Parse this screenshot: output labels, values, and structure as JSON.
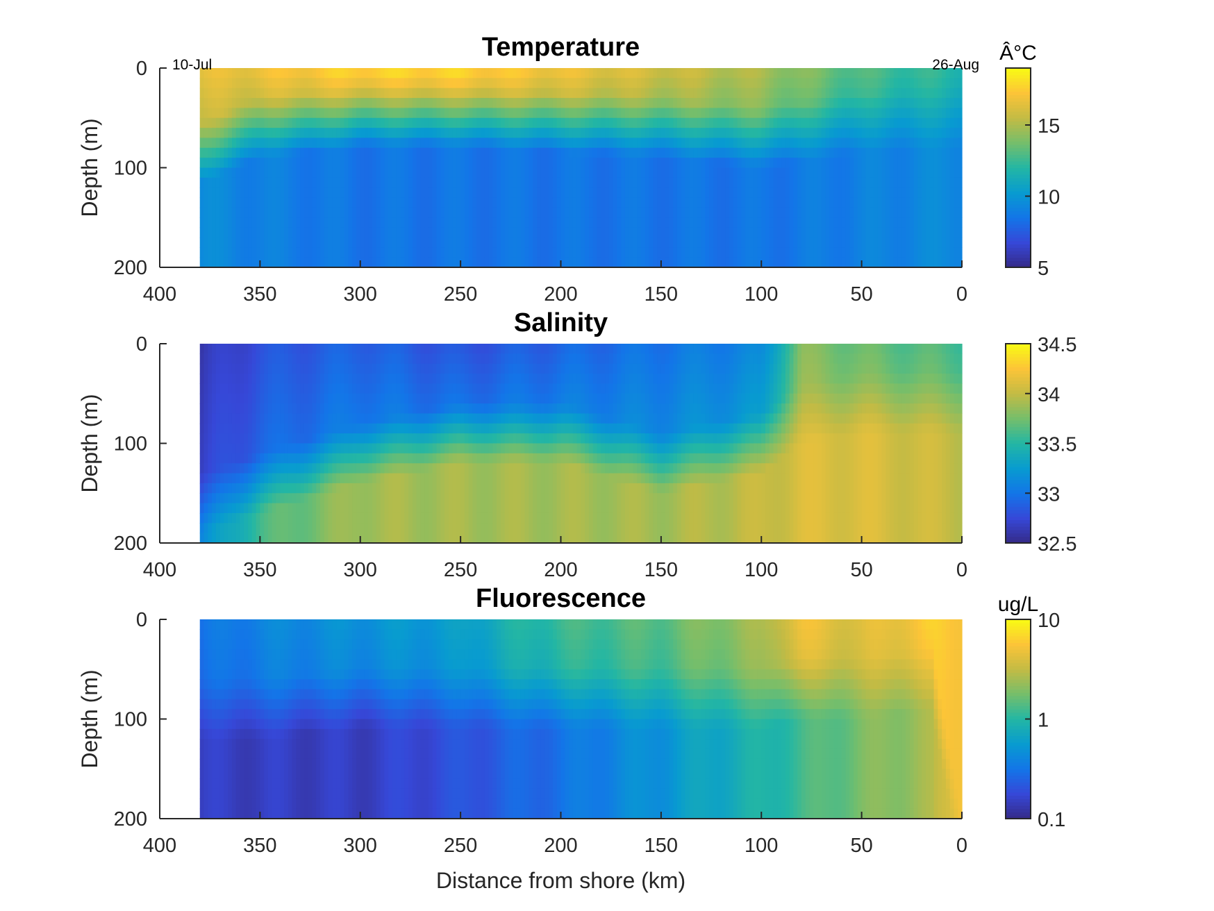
{
  "chart_data": [
    {
      "type": "heatmap",
      "title": "Temperature",
      "xlabel": "",
      "ylabel": "Depth (m)",
      "xlim": [
        400,
        0
      ],
      "ylim": [
        200,
        0
      ],
      "x_ticks": [
        "400",
        "350",
        "300",
        "250",
        "200",
        "150",
        "100",
        "50",
        "0"
      ],
      "y_ticks": [
        "0",
        "100",
        "200"
      ],
      "data_x_range": [
        380,
        0
      ],
      "colorbar": {
        "label": "Â°C",
        "range": [
          5,
          19
        ],
        "scale": "linear",
        "ticks": [
          "5",
          "10",
          "15"
        ],
        "tick_values": [
          5,
          10,
          15
        ]
      },
      "annotations": [
        "10-Jul",
        "26-Aug"
      ],
      "profile": {
        "x": [
          380,
          350,
          300,
          250,
          200,
          150,
          100,
          50,
          0
        ],
        "mixed_layer_depth_m": [
          55,
          30,
          20,
          20,
          25,
          30,
          40,
          25,
          20
        ],
        "surface_value": [
          16.5,
          17,
          18,
          18,
          17,
          16,
          15,
          13,
          12
        ],
        "deep_value": [
          9.5,
          9,
          8.5,
          8.5,
          8.5,
          8.5,
          8.5,
          9,
          9.5
        ]
      }
    },
    {
      "type": "heatmap",
      "title": "Salinity",
      "xlabel": "",
      "ylabel": "Depth (m)",
      "xlim": [
        400,
        0
      ],
      "ylim": [
        200,
        0
      ],
      "x_ticks": [
        "400",
        "350",
        "300",
        "250",
        "200",
        "150",
        "100",
        "50",
        "0"
      ],
      "y_ticks": [
        "0",
        "100",
        "200"
      ],
      "data_x_range": [
        380,
        0
      ],
      "colorbar": {
        "label": "",
        "range": [
          32.5,
          34.5
        ],
        "scale": "linear",
        "ticks": [
          "32.5",
          "33",
          "33.5",
          "34",
          "34.5"
        ],
        "tick_values": [
          32.5,
          33,
          33.5,
          34,
          34.5
        ]
      },
      "profile": {
        "x": [
          380,
          350,
          300,
          250,
          200,
          150,
          100,
          80,
          50,
          0
        ],
        "halocline_depth_m": [
          130,
          110,
          80,
          60,
          60,
          90,
          70,
          40,
          30,
          30
        ],
        "surface_value": [
          32.6,
          32.8,
          32.9,
          32.8,
          32.9,
          33.0,
          33.1,
          33.8,
          33.7,
          33.6
        ],
        "deep_value": [
          33.1,
          33.6,
          33.9,
          33.9,
          33.9,
          33.9,
          34.0,
          34.1,
          34.1,
          34.0
        ]
      }
    },
    {
      "type": "heatmap",
      "title": "Fluorescence",
      "xlabel": "Distance from shore (km)",
      "ylabel": "Depth (m)",
      "xlim": [
        400,
        0
      ],
      "ylim": [
        200,
        0
      ],
      "x_ticks": [
        "400",
        "350",
        "300",
        "250",
        "200",
        "150",
        "100",
        "50",
        "0"
      ],
      "y_ticks": [
        "0",
        "100",
        "200"
      ],
      "data_x_range": [
        380,
        0
      ],
      "colorbar": {
        "label": "ug/L",
        "range": [
          0.1,
          10
        ],
        "scale": "log",
        "ticks": [
          "0.1",
          "1",
          "10"
        ],
        "tick_values": [
          0.1,
          1,
          10
        ]
      },
      "profile": {
        "x": [
          380,
          350,
          300,
          250,
          200,
          150,
          100,
          80,
          50,
          15,
          0
        ],
        "surface_value": [
          0.3,
          0.4,
          0.5,
          0.6,
          1.2,
          1.5,
          2.5,
          5,
          4,
          6,
          6
        ],
        "deep_value": [
          0.15,
          0.15,
          0.15,
          0.2,
          0.3,
          0.5,
          0.9,
          1.2,
          1.8,
          2.5,
          5
        ],
        "surface_layer_depth_m": [
          60,
          60,
          50,
          50,
          50,
          50,
          50,
          40,
          40,
          30,
          200
        ]
      }
    }
  ]
}
